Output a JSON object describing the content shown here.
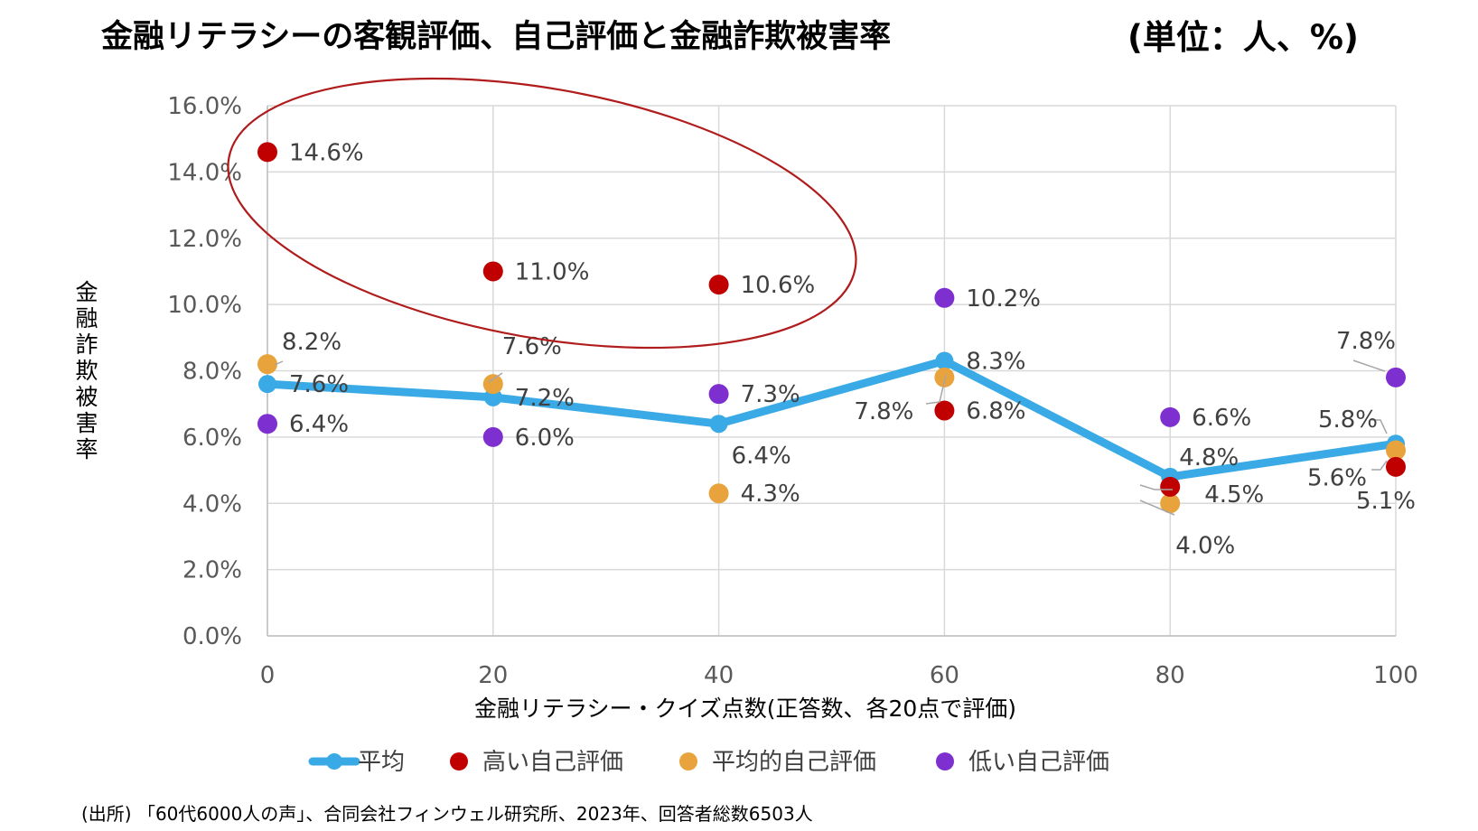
{
  "title": "金融リテラシーの客観評価、自己評価と金融詐欺被害率",
  "unit": "(単位：人、%)",
  "source": "(出所) 「60代6000人の声」、合同会社フィンウェル研究所、2023年、回答者総数6503人",
  "colors": {
    "average": "#3aaae6",
    "high": "#c00000",
    "mid": "#e8a33d",
    "low": "#7e2fcf",
    "ellipse": "#b01c1c"
  },
  "chart_data": {
    "type": "line",
    "title": "金融リテラシーの客観評価、自己評価と金融詐欺被害率",
    "xlabel": "金融リテラシー・クイズ点数(正答数、各20点で評価)",
    "ylabel": "金融詐欺被害率",
    "x": [
      0,
      20,
      40,
      60,
      80,
      100
    ],
    "x_ticks": [
      "0",
      "20",
      "40",
      "60",
      "80",
      "100"
    ],
    "y_ticks": [
      "0.0%",
      "2.0%",
      "4.0%",
      "6.0%",
      "8.0%",
      "10.0%",
      "12.0%",
      "14.0%",
      "16.0%"
    ],
    "ylim": [
      0,
      16
    ],
    "grid": true,
    "legend_position": "bottom",
    "series": [
      {
        "name": "平均",
        "style": "line",
        "color": "#3aaae6",
        "values": [
          7.6,
          7.2,
          6.4,
          8.3,
          4.8,
          5.8
        ],
        "labels": [
          "7.6%",
          "7.2%",
          "6.4%",
          "8.3%",
          "4.8%",
          "5.8%"
        ]
      },
      {
        "name": "高い自己評価",
        "style": "point",
        "color": "#c00000",
        "values": [
          14.6,
          11.0,
          10.6,
          6.8,
          4.5,
          5.1
        ],
        "labels": [
          "14.6%",
          "11.0%",
          "10.6%",
          "6.8%",
          "4.5%",
          "5.1%"
        ]
      },
      {
        "name": "平均的自己評価",
        "style": "point",
        "color": "#e8a33d",
        "values": [
          8.2,
          7.6,
          4.3,
          7.8,
          4.0,
          5.6
        ],
        "labels": [
          "8.2%",
          "7.6%",
          "4.3%",
          "7.8%",
          "4.0%",
          "5.6%"
        ]
      },
      {
        "name": "低い自己評価",
        "style": "point",
        "color": "#7e2fcf",
        "values": [
          6.4,
          6.0,
          7.3,
          10.2,
          6.6,
          7.8
        ],
        "labels": [
          "6.4%",
          "6.0%",
          "7.3%",
          "10.2%",
          "6.6%",
          "7.8%"
        ]
      }
    ]
  }
}
